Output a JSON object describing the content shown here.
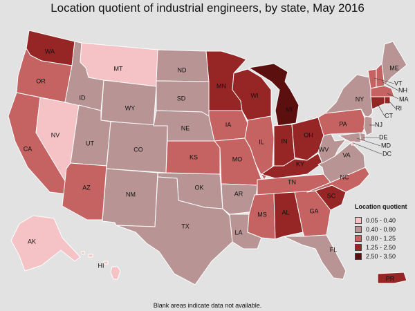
{
  "title": "Location quotient of industrial engineers, by state, May 2016",
  "footnote": "Blank areas indicate data not available.",
  "legend": {
    "title": "Location quotient",
    "bins": [
      {
        "label": "0.05 - 0.40",
        "color": "#f5c2c6"
      },
      {
        "label": "0.40 - 0.80",
        "color": "#b89594"
      },
      {
        "label": "0.80 - 1.25",
        "color": "#c56262"
      },
      {
        "label": "1.25 - 2.50",
        "color": "#962525"
      },
      {
        "label": "2.50 - 3.50",
        "color": "#5c0f0f"
      }
    ]
  },
  "states": [
    {
      "abbr": "WA",
      "bin": 3
    },
    {
      "abbr": "OR",
      "bin": 2
    },
    {
      "abbr": "CA",
      "bin": 2
    },
    {
      "abbr": "NV",
      "bin": 0
    },
    {
      "abbr": "ID",
      "bin": 1
    },
    {
      "abbr": "MT",
      "bin": 0
    },
    {
      "abbr": "WY",
      "bin": 1
    },
    {
      "abbr": "UT",
      "bin": 1
    },
    {
      "abbr": "AZ",
      "bin": 2
    },
    {
      "abbr": "CO",
      "bin": 1
    },
    {
      "abbr": "NM",
      "bin": 1
    },
    {
      "abbr": "ND",
      "bin": 1
    },
    {
      "abbr": "SD",
      "bin": 1
    },
    {
      "abbr": "NE",
      "bin": 1
    },
    {
      "abbr": "KS",
      "bin": 2
    },
    {
      "abbr": "OK",
      "bin": 1
    },
    {
      "abbr": "TX",
      "bin": 1
    },
    {
      "abbr": "MN",
      "bin": 3
    },
    {
      "abbr": "IA",
      "bin": 2
    },
    {
      "abbr": "MO",
      "bin": 2
    },
    {
      "abbr": "AR",
      "bin": 1
    },
    {
      "abbr": "LA",
      "bin": 1
    },
    {
      "abbr": "WI",
      "bin": 3
    },
    {
      "abbr": "IL",
      "bin": 2
    },
    {
      "abbr": "MI",
      "bin": 4
    },
    {
      "abbr": "IN",
      "bin": 3
    },
    {
      "abbr": "OH",
      "bin": 3
    },
    {
      "abbr": "KY",
      "bin": 3
    },
    {
      "abbr": "TN",
      "bin": 2
    },
    {
      "abbr": "MS",
      "bin": 2
    },
    {
      "abbr": "AL",
      "bin": 3
    },
    {
      "abbr": "GA",
      "bin": 2
    },
    {
      "abbr": "FL",
      "bin": 1
    },
    {
      "abbr": "SC",
      "bin": 3
    },
    {
      "abbr": "NC",
      "bin": 2
    },
    {
      "abbr": "VA",
      "bin": 1
    },
    {
      "abbr": "WV",
      "bin": 1
    },
    {
      "abbr": "PA",
      "bin": 2
    },
    {
      "abbr": "NY",
      "bin": 1
    },
    {
      "abbr": "VT",
      "bin": 2
    },
    {
      "abbr": "NH",
      "bin": 2
    },
    {
      "abbr": "ME",
      "bin": 1
    },
    {
      "abbr": "MA",
      "bin": 2
    },
    {
      "abbr": "RI",
      "bin": 3
    },
    {
      "abbr": "CT",
      "bin": 3
    },
    {
      "abbr": "NJ",
      "bin": 1
    },
    {
      "abbr": "DE",
      "bin": 1
    },
    {
      "abbr": "MD",
      "bin": 1
    },
    {
      "abbr": "DC",
      "bin": 0
    },
    {
      "abbr": "AK",
      "bin": 0
    },
    {
      "abbr": "HI",
      "bin": 0
    },
    {
      "abbr": "PR",
      "bin": 3
    }
  ]
}
